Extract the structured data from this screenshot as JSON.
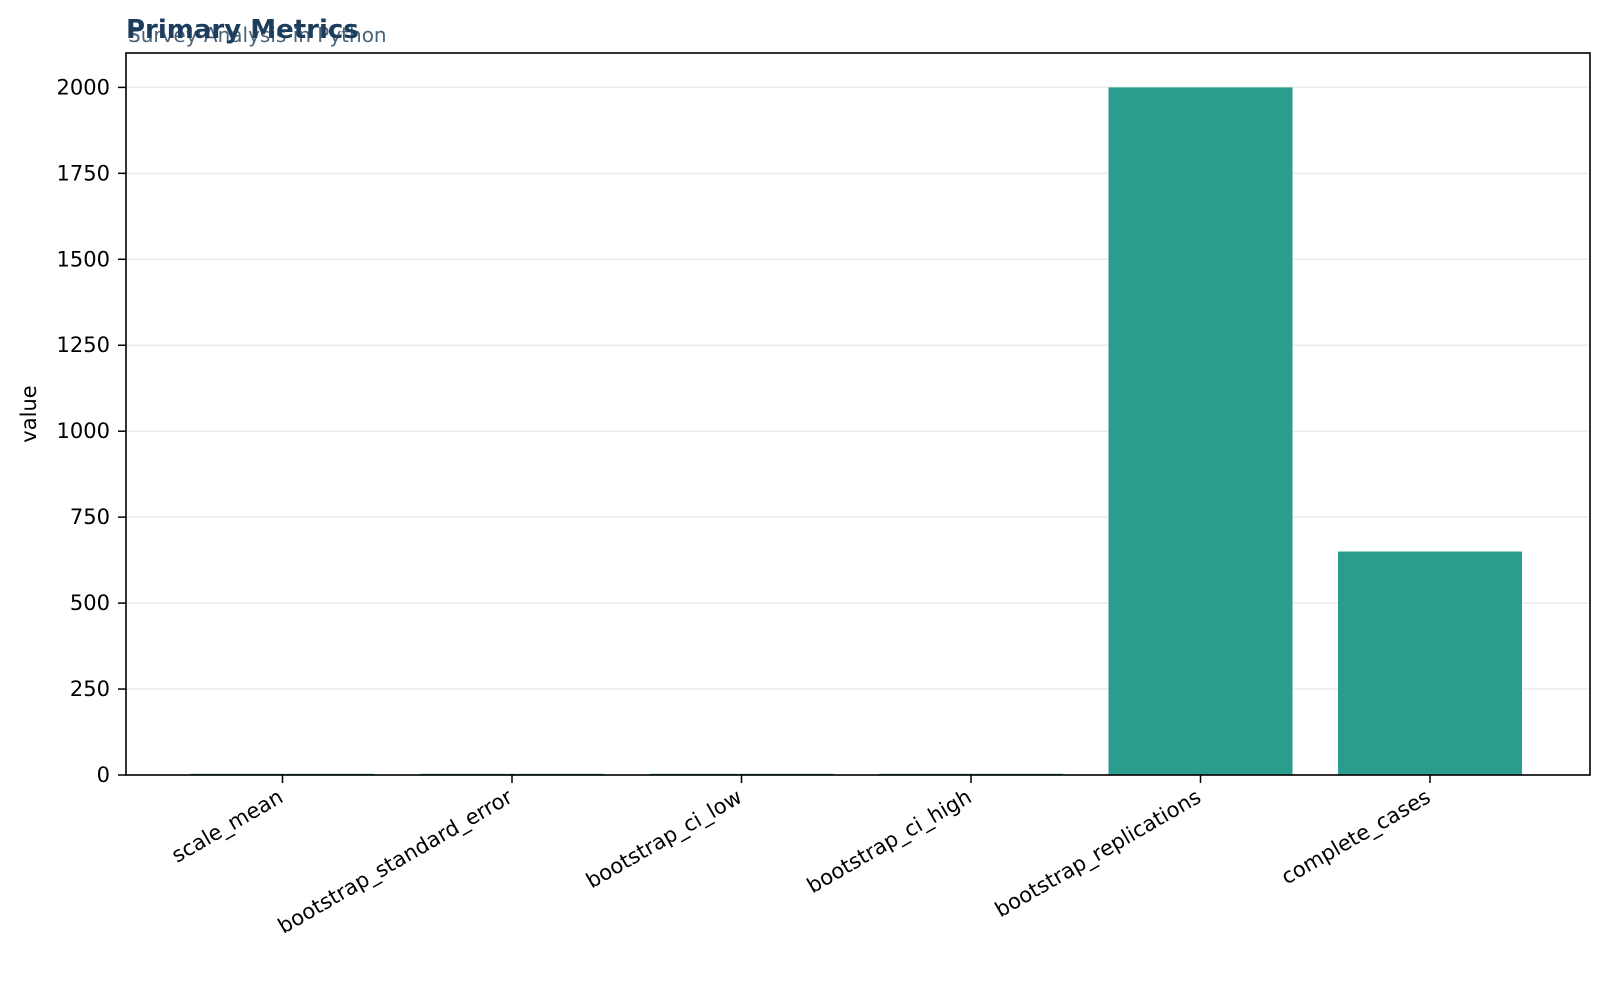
{
  "chart_data": {
    "type": "bar",
    "title": "Primary Metrics",
    "subtitle": "Survey Analysis in Python",
    "xlabel": "",
    "ylabel": "value",
    "categories": [
      "scale_mean",
      "bootstrap_standard_error",
      "bootstrap_ci_low",
      "bootstrap_ci_high",
      "bootstrap_replications",
      "complete_cases"
    ],
    "values": [
      3.5,
      0.05,
      3.4,
      3.6,
      2000,
      650
    ],
    "ylim": [
      0,
      2100
    ],
    "yticks": [
      0,
      250,
      500,
      750,
      1000,
      1250,
      1500,
      1750,
      2000
    ],
    "grid": "y",
    "legend": "none",
    "colors": {
      "bar": "#2a9d8f",
      "title": "#1d3d5c",
      "subtitle": "#4a6378",
      "grid": "#ebebeb",
      "axis": "#000000"
    }
  }
}
